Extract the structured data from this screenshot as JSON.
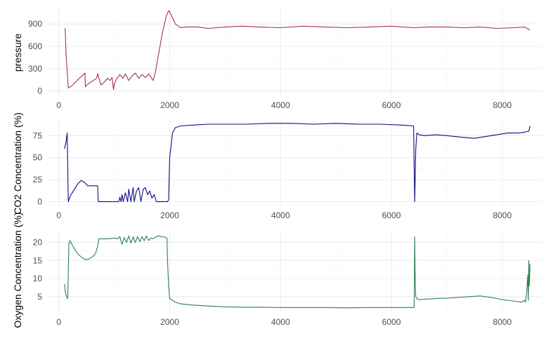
{
  "chart_data": [
    {
      "type": "line",
      "ylabel": "pressure",
      "color": "#A4305F",
      "xlim": [
        -200,
        8700
      ],
      "ylim": [
        -60,
        1090
      ],
      "x_ticks": [
        0,
        2000,
        4000,
        6000,
        8000
      ],
      "y_ticks": [
        0,
        300,
        600,
        900
      ],
      "grid": true,
      "series": [
        {
          "x": [
            100,
            115,
            130,
            170,
            220,
            300,
            400,
            470,
            480,
            520,
            600,
            680,
            700,
            760,
            820,
            880,
            920,
            960,
            985,
            1000,
            1040,
            1100,
            1160,
            1200,
            1260,
            1320,
            1380,
            1440,
            1500,
            1560,
            1620,
            1700,
            1740,
            1780,
            1820,
            1860,
            1900,
            1940,
            1980,
            2000,
            2060,
            2100,
            2160,
            2200,
            2300,
            2500,
            2700,
            3000,
            3300,
            3600,
            4000,
            4400,
            4800,
            5200,
            5600,
            6000,
            6400,
            6700,
            7000,
            7300,
            7600,
            7900,
            8200,
            8400,
            8500
          ],
          "y": [
            840,
            830,
            500,
            40,
            60,
            120,
            190,
            240,
            60,
            90,
            130,
            170,
            230,
            80,
            120,
            170,
            140,
            180,
            20,
            90,
            160,
            220,
            170,
            230,
            140,
            200,
            240,
            170,
            220,
            180,
            230,
            140,
            240,
            420,
            580,
            750,
            880,
            1010,
            1080,
            1060,
            970,
            900,
            870,
            850,
            860,
            860,
            840,
            860,
            870,
            860,
            850,
            870,
            860,
            850,
            860,
            870,
            850,
            860,
            860,
            850,
            860,
            840,
            850,
            860,
            820
          ]
        }
      ]
    },
    {
      "type": "line",
      "ylabel": "CO2 Concentration (%)",
      "color": "#0C0C80",
      "xlim": [
        -200,
        8700
      ],
      "ylim": [
        -4.5,
        92
      ],
      "x_ticks": [
        0,
        2000,
        4000,
        6000,
        8000
      ],
      "y_ticks": [
        0,
        25,
        50,
        75
      ],
      "grid": true,
      "series": [
        {
          "x": [
            100,
            130,
            150,
            160,
            170,
            190,
            220,
            280,
            340,
            400,
            460,
            520,
            580,
            640,
            700,
            710,
            740,
            800,
            900,
            1000,
            1080,
            1100,
            1120,
            1140,
            1160,
            1200,
            1240,
            1260,
            1300,
            1340,
            1360,
            1400,
            1440,
            1480,
            1520,
            1560,
            1600,
            1640,
            1680,
            1720,
            1760,
            1800,
            1860,
            1920,
            1960,
            1980,
            2000,
            2050,
            2100,
            2200,
            2400,
            2700,
            3000,
            3400,
            3800,
            4200,
            4600,
            5000,
            5400,
            5800,
            6200,
            6400,
            6410,
            6420,
            6440,
            6460,
            6500,
            6600,
            6800,
            7000,
            7300,
            7500,
            7700,
            7900,
            8100,
            8300,
            8400,
            8480,
            8500
          ],
          "y": [
            60,
            68,
            78,
            40,
            0,
            4,
            8,
            14,
            20,
            24,
            22,
            18,
            18,
            18,
            18,
            0,
            0,
            0,
            0,
            0,
            0,
            5,
            0,
            8,
            0,
            10,
            0,
            14,
            0,
            16,
            0,
            12,
            16,
            0,
            14,
            16,
            8,
            12,
            4,
            8,
            0,
            0,
            0,
            0,
            0,
            2,
            50,
            78,
            84,
            86,
            87,
            88,
            88,
            88,
            89,
            89,
            88,
            89,
            88,
            88,
            87,
            86,
            40,
            0,
            60,
            78,
            76,
            75,
            76,
            75,
            73,
            72,
            74,
            76,
            78,
            78,
            79,
            80,
            86
          ]
        }
      ]
    },
    {
      "type": "line",
      "ylabel": "Oxygen Concentration (%)",
      "color": "#2F8150",
      "xlim": [
        -200,
        8700
      ],
      "ylim": [
        0.7,
        23
      ],
      "x_ticks": [
        0,
        2000,
        4000,
        6000,
        8000
      ],
      "y_ticks": [
        5,
        10,
        15,
        20
      ],
      "grid": true,
      "series": [
        {
          "x": [
            100,
            120,
            140,
            160,
            170,
            180,
            200,
            250,
            300,
            360,
            420,
            480,
            540,
            600,
            660,
            700,
            720,
            760,
            800,
            900,
            1000,
            1060,
            1100,
            1140,
            1180,
            1220,
            1260,
            1300,
            1340,
            1380,
            1420,
            1460,
            1500,
            1540,
            1580,
            1620,
            1660,
            1700,
            1720,
            1750,
            1800,
            1850,
            1900,
            1950,
            1960,
            1980,
            2000,
            2050,
            2100,
            2200,
            2400,
            2700,
            3000,
            3300,
            3600,
            4000,
            4400,
            4800,
            5200,
            5600,
            6000,
            6300,
            6410,
            6420,
            6430,
            6440,
            6460,
            6500,
            6600,
            6800,
            7000,
            7200,
            7400,
            7600,
            7800,
            8000,
            8200,
            8350,
            8400,
            8420,
            8440,
            8460,
            8470,
            8480,
            8490,
            8500
          ],
          "y": [
            8.5,
            6,
            5,
            4.5,
            12,
            19.5,
            20.5,
            19,
            17.8,
            16.5,
            15.8,
            15.2,
            15.4,
            16,
            16.8,
            19,
            21,
            21,
            21,
            21,
            21.2,
            21,
            21.6,
            19.5,
            21.4,
            20,
            21.8,
            19.8,
            21.5,
            20,
            21.6,
            20.2,
            21.6,
            20.5,
            21.8,
            20.5,
            21.2,
            21,
            21.2,
            21.5,
            21.8,
            21.6,
            21.5,
            21.2,
            15,
            8,
            4.5,
            4,
            3.5,
            3,
            2.7,
            2.4,
            2.2,
            2.1,
            2.1,
            2,
            2,
            2,
            1.9,
            2,
            2,
            2,
            2,
            21.5,
            8,
            5,
            4.5,
            4.2,
            4.3,
            4.5,
            4.6,
            4.8,
            5,
            5.2,
            4.8,
            4.2,
            3.8,
            3.5,
            4,
            3.5,
            6,
            11,
            4,
            15,
            8,
            14
          ]
        }
      ]
    }
  ]
}
